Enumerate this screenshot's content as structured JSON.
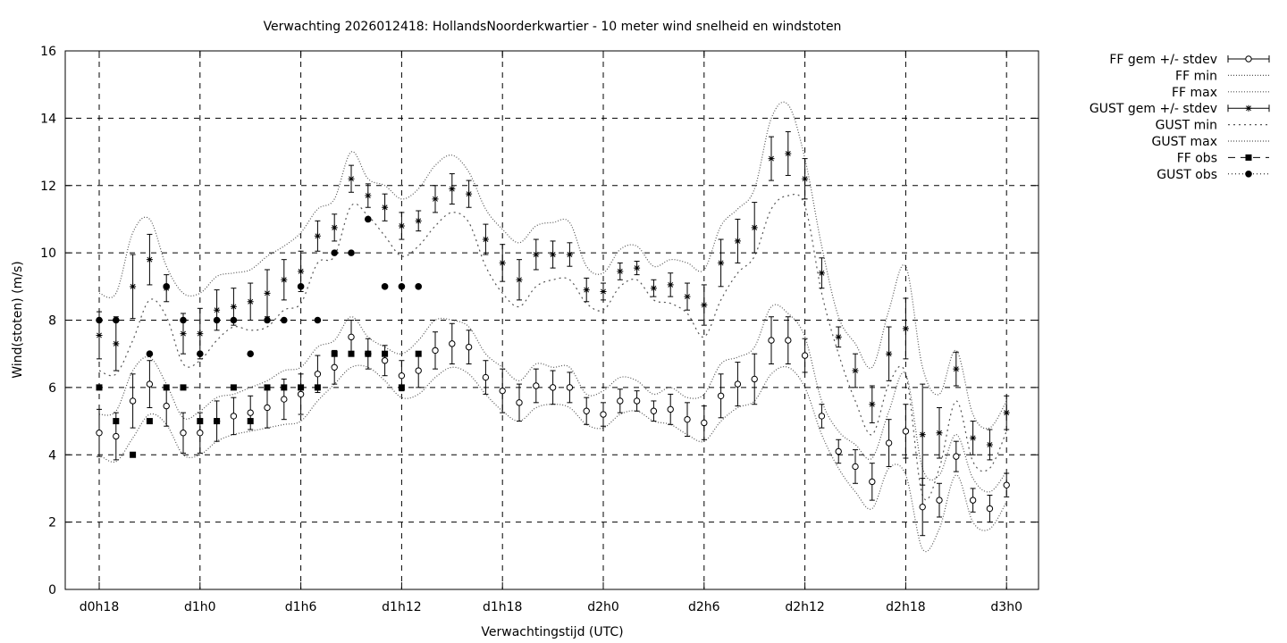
{
  "chart_data": {
    "type": "line",
    "title": "Verwachting 2026012418: HollandsNoorderkwartier - 10 meter wind snelheid en windstoten",
    "xlabel": "Verwachtingstijd (UTC)",
    "ylabel": "Wind(stoten) (m/s)",
    "ylim": [
      0,
      16
    ],
    "xlim": [
      17,
      75
    ],
    "x_unit": "hours since d0h0",
    "yticks": [
      0,
      2,
      4,
      6,
      8,
      10,
      12,
      14,
      16
    ],
    "xticks": [
      {
        "x": 18,
        "label": "d0h18"
      },
      {
        "x": 24,
        "label": "d1h0"
      },
      {
        "x": 30,
        "label": "d1h6"
      },
      {
        "x": 36,
        "label": "d1h12"
      },
      {
        "x": 42,
        "label": "d1h18"
      },
      {
        "x": 48,
        "label": "d2h0"
      },
      {
        "x": 54,
        "label": "d2h6"
      },
      {
        "x": 60,
        "label": "d2h12"
      },
      {
        "x": 66,
        "label": "d2h18"
      },
      {
        "x": 72,
        "label": "d3h0"
      }
    ],
    "grid": true,
    "legend_position": "outside-right",
    "legend": [
      {
        "label": "FF gem +/- stdev",
        "style": "errorbar-circle"
      },
      {
        "label": "FF min",
        "style": "dotted"
      },
      {
        "label": "FF max",
        "style": "dotted"
      },
      {
        "label": "GUST gem +/- stdev",
        "style": "errorbar-star"
      },
      {
        "label": "GUST min",
        "style": "dotted"
      },
      {
        "label": "GUST max",
        "style": "dotted"
      },
      {
        "label": "FF obs",
        "style": "square-dashed"
      },
      {
        "label": "GUST obs",
        "style": "circle-dotted"
      }
    ],
    "x": [
      18,
      19,
      20,
      21,
      22,
      23,
      24,
      25,
      26,
      27,
      28,
      29,
      30,
      31,
      32,
      33,
      34,
      35,
      36,
      37,
      38,
      39,
      40,
      41,
      42,
      43,
      44,
      45,
      46,
      47,
      48,
      49,
      50,
      51,
      52,
      53,
      54,
      55,
      56,
      57,
      58,
      59,
      60,
      61,
      62,
      63,
      64,
      65,
      66,
      67,
      68,
      69,
      70,
      71,
      72
    ],
    "series": [
      {
        "name": "FF gem +/- stdev",
        "mean": [
          4.65,
          4.55,
          5.6,
          6.1,
          5.45,
          4.65,
          4.65,
          5.0,
          5.15,
          5.25,
          5.4,
          5.65,
          5.8,
          6.4,
          6.6,
          7.5,
          7.0,
          6.8,
          6.35,
          6.5,
          7.1,
          7.3,
          7.2,
          6.3,
          5.9,
          5.55,
          6.05,
          6.0,
          6.0,
          5.3,
          5.2,
          5.6,
          5.6,
          5.3,
          5.35,
          5.05,
          4.95,
          5.75,
          6.1,
          6.25,
          7.4,
          7.4,
          6.95,
          5.15,
          4.1,
          3.65,
          3.2,
          4.35,
          4.7,
          2.45,
          2.65,
          3.95,
          2.65,
          2.4,
          3.1
        ],
        "stdev": [
          0.7,
          0.7,
          0.8,
          0.7,
          0.6,
          0.6,
          0.6,
          0.6,
          0.55,
          0.5,
          0.6,
          0.6,
          0.6,
          0.55,
          0.5,
          0.5,
          0.45,
          0.45,
          0.45,
          0.5,
          0.55,
          0.6,
          0.5,
          0.5,
          0.65,
          0.55,
          0.5,
          0.5,
          0.45,
          0.4,
          0.35,
          0.35,
          0.3,
          0.3,
          0.45,
          0.5,
          0.5,
          0.65,
          0.65,
          0.75,
          0.7,
          0.7,
          0.5,
          0.35,
          0.35,
          0.5,
          0.55,
          0.7,
          0.8,
          0.85,
          0.5,
          0.45,
          0.35,
          0.4,
          0.35
        ]
      },
      {
        "name": "FF min",
        "values": [
          4.0,
          3.8,
          4.5,
          5.2,
          4.9,
          4.0,
          4.0,
          4.4,
          4.6,
          4.7,
          4.8,
          4.9,
          5.0,
          5.6,
          6.1,
          6.6,
          6.6,
          6.2,
          5.7,
          5.8,
          6.3,
          6.6,
          6.4,
          5.8,
          5.3,
          5.0,
          5.4,
          5.5,
          5.4,
          4.9,
          4.8,
          5.2,
          5.3,
          5.0,
          4.9,
          4.6,
          4.4,
          5.0,
          5.4,
          5.6,
          6.4,
          6.6,
          6.0,
          4.6,
          3.6,
          2.9,
          2.4,
          3.6,
          3.4,
          1.2,
          1.8,
          3.4,
          2.0,
          1.8,
          2.6
        ]
      },
      {
        "name": "FF max",
        "values": [
          5.2,
          5.3,
          6.5,
          6.9,
          6.1,
          5.1,
          5.3,
          5.7,
          5.8,
          6.0,
          6.2,
          6.5,
          6.6,
          7.2,
          7.4,
          8.1,
          7.5,
          7.2,
          7.0,
          7.4,
          8.0,
          8.0,
          7.8,
          7.0,
          6.6,
          6.2,
          6.7,
          6.6,
          6.6,
          5.8,
          5.9,
          6.3,
          6.2,
          5.8,
          6.0,
          5.7,
          5.8,
          6.7,
          6.9,
          7.2,
          8.4,
          8.2,
          7.5,
          5.6,
          4.7,
          4.3,
          3.9,
          5.3,
          6.4,
          3.6,
          3.4,
          4.6,
          3.3,
          2.9,
          3.5
        ]
      },
      {
        "name": "GUST gem +/- stdev",
        "mean": [
          7.55,
          7.3,
          9.0,
          9.8,
          8.95,
          7.6,
          7.6,
          8.3,
          8.4,
          8.55,
          8.8,
          9.2,
          9.45,
          10.5,
          10.75,
          12.2,
          11.7,
          11.35,
          10.8,
          10.95,
          11.6,
          11.9,
          11.75,
          10.4,
          9.7,
          9.2,
          9.95,
          9.95,
          9.95,
          8.9,
          8.85,
          9.45,
          9.55,
          8.95,
          9.05,
          8.7,
          8.45,
          9.7,
          10.35,
          10.75,
          12.8,
          12.95,
          12.2,
          9.4,
          7.5,
          6.5,
          5.5,
          7.0,
          7.75,
          4.6,
          4.65,
          6.55,
          4.5,
          4.3,
          5.25
        ],
        "stdev": [
          0.7,
          0.8,
          0.95,
          0.75,
          0.4,
          0.6,
          0.75,
          0.6,
          0.55,
          0.55,
          0.7,
          0.6,
          0.6,
          0.45,
          0.4,
          0.4,
          0.35,
          0.4,
          0.4,
          0.3,
          0.4,
          0.45,
          0.4,
          0.45,
          0.55,
          0.6,
          0.45,
          0.4,
          0.35,
          0.35,
          0.25,
          0.25,
          0.2,
          0.25,
          0.35,
          0.4,
          0.6,
          0.7,
          0.65,
          0.75,
          0.65,
          0.65,
          0.6,
          0.45,
          0.3,
          0.5,
          0.55,
          0.8,
          0.9,
          1.5,
          0.75,
          0.5,
          0.5,
          0.45,
          0.5
        ]
      },
      {
        "name": "GUST min",
        "values": [
          6.5,
          6.4,
          7.4,
          8.6,
          8.1,
          6.7,
          6.8,
          7.4,
          7.8,
          7.7,
          7.8,
          8.3,
          8.5,
          9.7,
          9.9,
          11.4,
          11.1,
          10.5,
          9.9,
          10.2,
          10.8,
          11.2,
          10.9,
          9.6,
          8.8,
          8.4,
          9.0,
          9.2,
          9.2,
          8.5,
          8.3,
          9.0,
          9.2,
          8.6,
          8.5,
          8.2,
          7.5,
          8.6,
          9.4,
          9.9,
          11.3,
          11.7,
          11.4,
          8.8,
          7.0,
          5.6,
          4.6,
          6.1,
          6.4,
          2.8,
          3.6,
          5.6,
          3.8,
          3.6,
          4.7
        ]
      },
      {
        "name": "GUST max",
        "values": [
          8.8,
          8.8,
          10.6,
          11.0,
          9.6,
          8.8,
          8.8,
          9.3,
          9.4,
          9.5,
          9.9,
          10.2,
          10.6,
          11.3,
          11.6,
          13.0,
          12.2,
          12.0,
          11.6,
          11.9,
          12.6,
          12.9,
          12.4,
          11.3,
          10.7,
          10.3,
          10.8,
          10.9,
          10.9,
          9.6,
          9.4,
          10.1,
          10.2,
          9.6,
          9.8,
          9.7,
          9.5,
          10.8,
          11.3,
          11.9,
          14.0,
          14.4,
          12.8,
          10.2,
          8.1,
          7.3,
          6.6,
          8.3,
          9.6,
          6.6,
          5.8,
          7.1,
          5.2,
          4.8,
          5.6
        ]
      },
      {
        "name": "FF obs",
        "x": [
          18,
          19,
          20,
          21,
          22,
          23,
          24,
          25,
          26,
          27,
          28,
          29,
          30,
          31,
          32,
          33,
          34,
          35,
          36,
          37
        ],
        "values": [
          6,
          5,
          4,
          5,
          6,
          6,
          5,
          5,
          6,
          5,
          6,
          6,
          6,
          6,
          7,
          7,
          7,
          7,
          6,
          7
        ]
      },
      {
        "name": "GUST obs",
        "x": [
          18,
          19,
          21,
          22,
          23,
          24,
          25,
          26,
          27,
          28,
          29,
          30,
          31,
          32,
          33,
          34,
          35,
          36,
          37
        ],
        "values": [
          8,
          8,
          7,
          9,
          8,
          7,
          8,
          8,
          7,
          8,
          8,
          9,
          8,
          10,
          10,
          11,
          9,
          9,
          9
        ]
      }
    ]
  }
}
